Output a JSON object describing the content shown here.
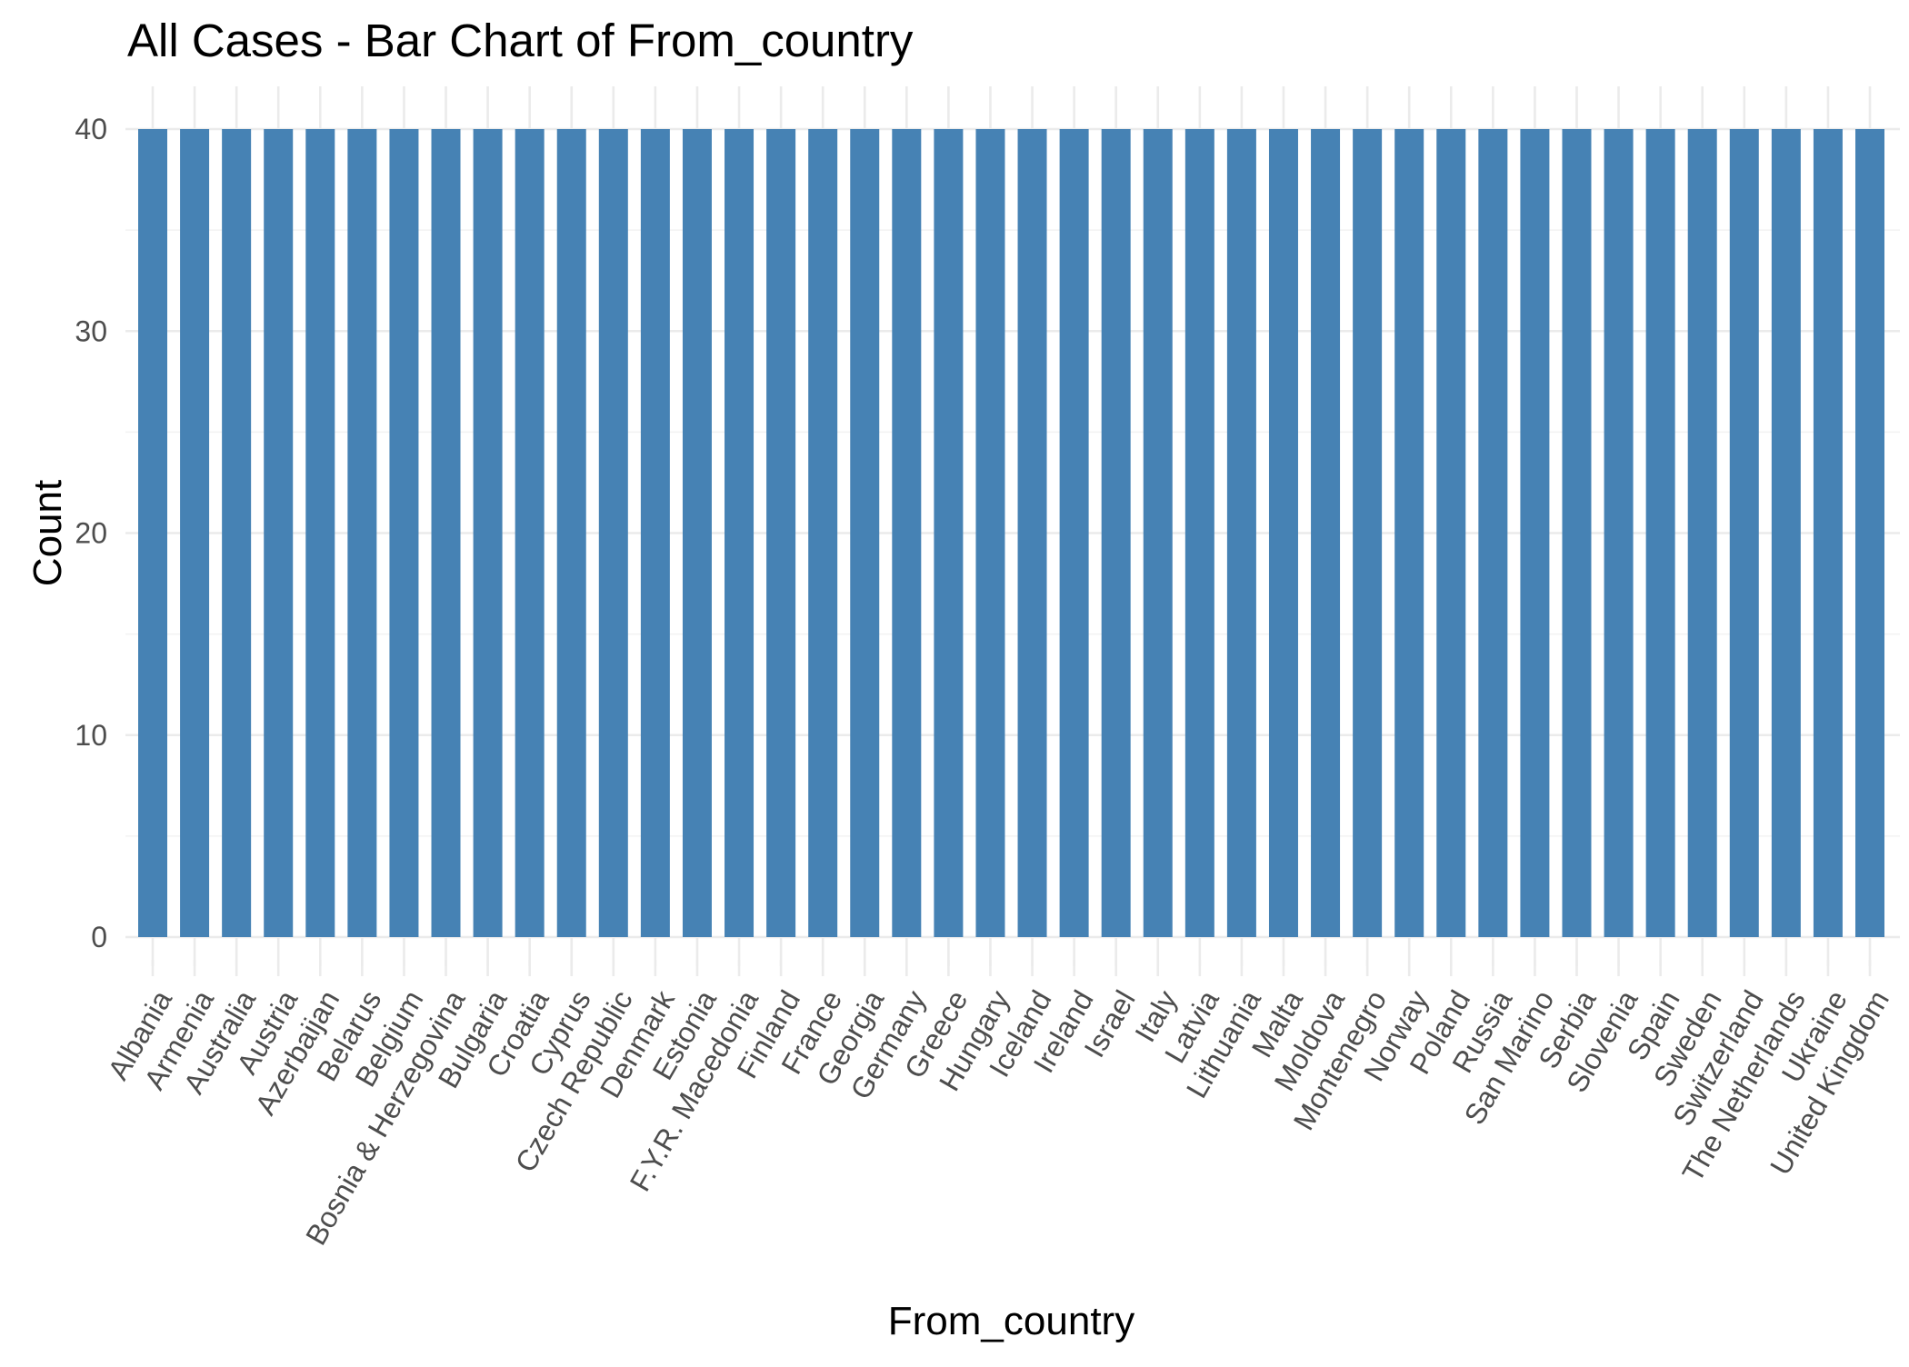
{
  "chart_data": {
    "type": "bar",
    "title": "All Cases - Bar Chart of  From_country",
    "xlabel": "From_country",
    "ylabel": "Count",
    "ylim": [
      0,
      42
    ],
    "yticks": [
      0,
      10,
      20,
      30,
      40
    ],
    "grid": true,
    "legend": "none",
    "bar_color": "#4682B4",
    "categories": [
      "Albania",
      "Armenia",
      "Australia",
      "Austria",
      "Azerbaijan",
      "Belarus",
      "Belgium",
      "Bosnia & Herzegovina",
      "Bulgaria",
      "Croatia",
      "Cyprus",
      "Czech Republic",
      "Denmark",
      "Estonia",
      "F.Y.R. Macedonia",
      "Finland",
      "France",
      "Georgia",
      "Germany",
      "Greece",
      "Hungary",
      "Iceland",
      "Ireland",
      "Israel",
      "Italy",
      "Latvia",
      "Lithuania",
      "Malta",
      "Moldova",
      "Montenegro",
      "Norway",
      "Poland",
      "Russia",
      "San Marino",
      "Serbia",
      "Slovenia",
      "Spain",
      "Sweden",
      "Switzerland",
      "The Netherlands",
      "Ukraine",
      "United Kingdom"
    ],
    "values": [
      40,
      40,
      40,
      40,
      40,
      40,
      40,
      40,
      40,
      40,
      40,
      40,
      40,
      40,
      40,
      40,
      40,
      40,
      40,
      40,
      40,
      40,
      40,
      40,
      40,
      40,
      40,
      40,
      40,
      40,
      40,
      40,
      40,
      40,
      40,
      40,
      40,
      40,
      40,
      40,
      40,
      40
    ]
  }
}
